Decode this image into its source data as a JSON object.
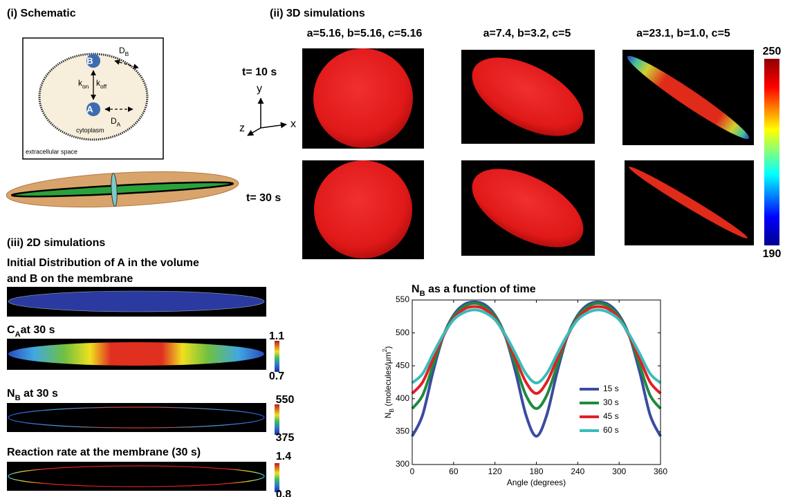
{
  "panel_i": {
    "title": "(i) Schematic",
    "species_b": "B",
    "species_a": "A",
    "d_b": [
      {
        "t": "D"
      },
      {
        "t": "B",
        "s": "sub"
      }
    ],
    "k_on": [
      {
        "t": "k"
      },
      {
        "t": "on",
        "s": "sub"
      }
    ],
    "k_off": [
      {
        "t": "k"
      },
      {
        "t": "off",
        "s": "sub"
      }
    ],
    "d_a": [
      {
        "t": "D"
      },
      {
        "t": "A",
        "s": "sub"
      }
    ],
    "cytoplasm": "cytoplasm",
    "extracellular": "extracellular space"
  },
  "panel_ii": {
    "title": "(ii) 3D simulations",
    "columns": [
      "a=5.16, b=5.16, c=5.16",
      "a=7.4, b=3.2, c=5",
      "a=23.1, b=1.0, c=5"
    ],
    "rows": [
      "t= 10 s",
      "t= 30 s"
    ],
    "axes": {
      "y": "y",
      "z": "z",
      "x": "x"
    },
    "colorbar": {
      "max": 250,
      "min": 190
    }
  },
  "panel_iii": {
    "title": "(iii) 2D simulations",
    "heading": [
      "Initial Distribution of A in the volume",
      "and B on the membrane"
    ],
    "strips": [
      {
        "label": [
          {
            "t": "C"
          },
          {
            "t": "A",
            "s": "sub"
          },
          {
            "t": "at 30 s"
          }
        ],
        "max": 1.1,
        "min": 0.7
      },
      {
        "label": [
          {
            "t": "N"
          },
          {
            "t": "B",
            "s": "sub"
          },
          {
            "t": " at 30 s"
          }
        ],
        "max": 550,
        "min": 375
      },
      {
        "label": [
          {
            "t": "Reaction rate at the membrane (30 s)"
          }
        ],
        "max": 1.4,
        "min": 0.8
      }
    ]
  },
  "chart_data": {
    "type": "line",
    "title": [
      {
        "t": "N"
      },
      {
        "t": "B",
        "s": "sub"
      },
      {
        "t": "  as a function of time"
      }
    ],
    "xlabel": "Angle (degrees)",
    "ylabel": [
      {
        "t": "N"
      },
      {
        "t": "B",
        "s": "sub"
      },
      {
        "t": " (molecules/μm"
      },
      {
        "t": "2",
        "s": "super"
      },
      {
        "t": ")"
      }
    ],
    "x": [
      0,
      15,
      30,
      45,
      60,
      75,
      90,
      105,
      120,
      135,
      150,
      165,
      180,
      195,
      210,
      225,
      240,
      255,
      270,
      285,
      300,
      315,
      330,
      345,
      360
    ],
    "series": [
      {
        "name": "15 s",
        "color": "#3a4ba0",
        "values": [
          343,
          375,
          440,
          495,
          527,
          543,
          547,
          543,
          527,
          495,
          440,
          375,
          343,
          375,
          440,
          495,
          527,
          543,
          547,
          543,
          527,
          495,
          440,
          375,
          343
        ]
      },
      {
        "name": "30 s",
        "color": "#1f8a3d",
        "values": [
          385,
          405,
          450,
          495,
          525,
          540,
          545,
          540,
          525,
          495,
          450,
          405,
          385,
          405,
          450,
          495,
          525,
          540,
          545,
          540,
          525,
          495,
          450,
          405,
          385
        ]
      },
      {
        "name": "45 s",
        "color": "#e21f26",
        "values": [
          408,
          425,
          460,
          495,
          522,
          536,
          540,
          536,
          522,
          495,
          460,
          425,
          408,
          425,
          460,
          495,
          522,
          536,
          540,
          536,
          522,
          495,
          460,
          425,
          408
        ]
      },
      {
        "name": "60 s",
        "color": "#39bcbc",
        "values": [
          424,
          438,
          468,
          497,
          520,
          531,
          535,
          531,
          520,
          497,
          468,
          438,
          424,
          438,
          468,
          497,
          520,
          531,
          535,
          531,
          520,
          497,
          468,
          438,
          424
        ]
      }
    ],
    "xlim": [
      0,
      360
    ],
    "xticks": [
      0,
      60,
      120,
      180,
      240,
      300,
      360
    ],
    "ylim": [
      300,
      550
    ],
    "yticks": [
      300,
      350,
      400,
      450,
      500,
      550
    ],
    "grid": false,
    "legend": "lower right"
  }
}
